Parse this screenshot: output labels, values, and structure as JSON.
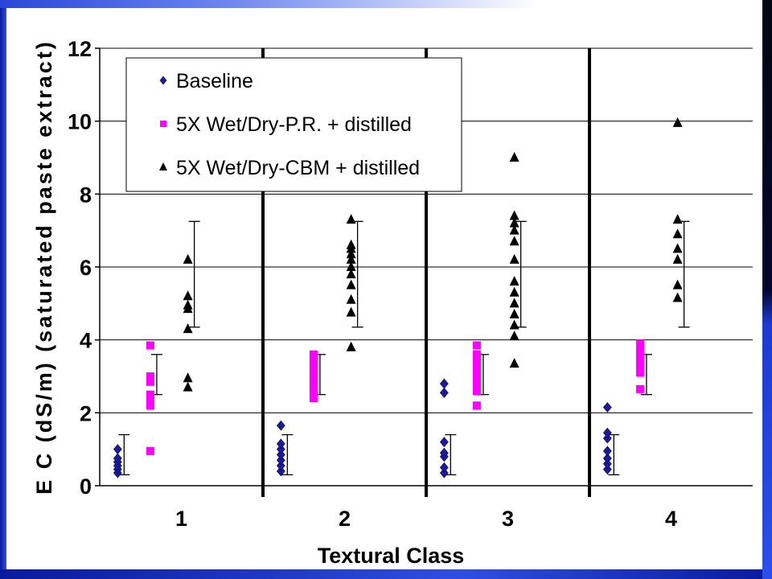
{
  "chart_data": {
    "type": "scatter",
    "xlabel": "Textural Class",
    "ylabel": "E C (dS/m) (saturated paste extract)",
    "ylim": [
      0,
      12
    ],
    "yticks": [
      "0",
      "2",
      "4",
      "6",
      "8",
      "10",
      "12"
    ],
    "categories": [
      "1",
      "2",
      "3",
      "4"
    ],
    "grid": "horizontal",
    "legend_position": "top-left",
    "series": [
      {
        "name": "Baseline",
        "marker": "diamond",
        "color": "#1a1a9c",
        "points": [
          {
            "x": 1,
            "y": 0.35
          },
          {
            "x": 1,
            "y": 0.45
          },
          {
            "x": 1,
            "y": 0.55
          },
          {
            "x": 1,
            "y": 0.65
          },
          {
            "x": 1,
            "y": 0.75
          },
          {
            "x": 1,
            "y": 1.0
          },
          {
            "x": 2,
            "y": 0.4
          },
          {
            "x": 2,
            "y": 0.55
          },
          {
            "x": 2,
            "y": 0.7
          },
          {
            "x": 2,
            "y": 0.85
          },
          {
            "x": 2,
            "y": 1.0
          },
          {
            "x": 2,
            "y": 1.15
          },
          {
            "x": 2,
            "y": 1.65
          },
          {
            "x": 3,
            "y": 0.35
          },
          {
            "x": 3,
            "y": 0.5
          },
          {
            "x": 3,
            "y": 0.8
          },
          {
            "x": 3,
            "y": 0.9
          },
          {
            "x": 3,
            "y": 1.2
          },
          {
            "x": 3,
            "y": 2.55
          },
          {
            "x": 3,
            "y": 2.8
          },
          {
            "x": 4,
            "y": 0.45
          },
          {
            "x": 4,
            "y": 0.6
          },
          {
            "x": 4,
            "y": 0.75
          },
          {
            "x": 4,
            "y": 0.95
          },
          {
            "x": 4,
            "y": 1.3
          },
          {
            "x": 4,
            "y": 1.45
          },
          {
            "x": 4,
            "y": 2.15
          }
        ]
      },
      {
        "name": "5X Wet/Dry-P.R. + distilled",
        "marker": "square",
        "color": "#ff00ff",
        "points": [
          {
            "x": 1,
            "y": 0.95
          },
          {
            "x": 1,
            "y": 2.2
          },
          {
            "x": 1,
            "y": 2.4
          },
          {
            "x": 1,
            "y": 2.5
          },
          {
            "x": 1,
            "y": 2.85
          },
          {
            "x": 1,
            "y": 3.0
          },
          {
            "x": 1,
            "y": 3.85
          },
          {
            "x": 2,
            "y": 2.4
          },
          {
            "x": 2,
            "y": 2.6
          },
          {
            "x": 2,
            "y": 2.8
          },
          {
            "x": 2,
            "y": 3.0
          },
          {
            "x": 2,
            "y": 3.2
          },
          {
            "x": 2,
            "y": 3.4
          },
          {
            "x": 2,
            "y": 3.6
          },
          {
            "x": 3,
            "y": 2.2
          },
          {
            "x": 3,
            "y": 2.6
          },
          {
            "x": 3,
            "y": 2.8
          },
          {
            "x": 3,
            "y": 3.0
          },
          {
            "x": 3,
            "y": 3.2
          },
          {
            "x": 3,
            "y": 3.4
          },
          {
            "x": 3,
            "y": 3.6
          },
          {
            "x": 3,
            "y": 3.85
          },
          {
            "x": 4,
            "y": 2.65
          },
          {
            "x": 4,
            "y": 3.1
          },
          {
            "x": 4,
            "y": 3.3
          },
          {
            "x": 4,
            "y": 3.5
          },
          {
            "x": 4,
            "y": 3.7
          },
          {
            "x": 4,
            "y": 3.9
          }
        ]
      },
      {
        "name": "5X Wet/Dry-CBM + distilled",
        "marker": "triangle",
        "color": "#000000",
        "points": [
          {
            "x": 1,
            "y": 2.7
          },
          {
            "x": 1,
            "y": 2.95
          },
          {
            "x": 1,
            "y": 4.3
          },
          {
            "x": 1,
            "y": 4.85
          },
          {
            "x": 1,
            "y": 4.95
          },
          {
            "x": 1,
            "y": 5.2
          },
          {
            "x": 1,
            "y": 6.2
          },
          {
            "x": 2,
            "y": 3.8
          },
          {
            "x": 2,
            "y": 4.75
          },
          {
            "x": 2,
            "y": 5.1
          },
          {
            "x": 2,
            "y": 5.5
          },
          {
            "x": 2,
            "y": 5.8
          },
          {
            "x": 2,
            "y": 6.0
          },
          {
            "x": 2,
            "y": 6.2
          },
          {
            "x": 2,
            "y": 6.35
          },
          {
            "x": 2,
            "y": 6.5
          },
          {
            "x": 2,
            "y": 6.6
          },
          {
            "x": 2,
            "y": 7.3
          },
          {
            "x": 3,
            "y": 3.35
          },
          {
            "x": 3,
            "y": 4.1
          },
          {
            "x": 3,
            "y": 4.4
          },
          {
            "x": 3,
            "y": 4.7
          },
          {
            "x": 3,
            "y": 5.0
          },
          {
            "x": 3,
            "y": 5.3
          },
          {
            "x": 3,
            "y": 5.6
          },
          {
            "x": 3,
            "y": 6.2
          },
          {
            "x": 3,
            "y": 6.7
          },
          {
            "x": 3,
            "y": 7.0
          },
          {
            "x": 3,
            "y": 7.2
          },
          {
            "x": 3,
            "y": 7.4
          },
          {
            "x": 3,
            "y": 9.0
          },
          {
            "x": 4,
            "y": 5.15
          },
          {
            "x": 4,
            "y": 5.5
          },
          {
            "x": 4,
            "y": 6.2
          },
          {
            "x": 4,
            "y": 6.5
          },
          {
            "x": 4,
            "y": 6.9
          },
          {
            "x": 4,
            "y": 7.3
          },
          {
            "x": 4,
            "y": 9.95
          }
        ]
      }
    ],
    "error_bars": [
      {
        "series": "Baseline",
        "x": 1,
        "low": 0.3,
        "high": 1.4
      },
      {
        "series": "5X Wet/Dry-P.R. + distilled",
        "x": 1,
        "low": 2.5,
        "high": 3.6
      },
      {
        "series": "5X Wet/Dry-CBM + distilled",
        "x": 1,
        "low": 4.35,
        "high": 7.25
      },
      {
        "series": "Baseline",
        "x": 2,
        "low": 0.3,
        "high": 1.4
      },
      {
        "series": "5X Wet/Dry-P.R. + distilled",
        "x": 2,
        "low": 2.5,
        "high": 3.6
      },
      {
        "series": "5X Wet/Dry-CBM + distilled",
        "x": 2,
        "low": 4.35,
        "high": 7.25
      },
      {
        "series": "Baseline",
        "x": 3,
        "low": 0.3,
        "high": 1.4
      },
      {
        "series": "5X Wet/Dry-P.R. + distilled",
        "x": 3,
        "low": 2.5,
        "high": 3.6
      },
      {
        "series": "5X Wet/Dry-CBM + distilled",
        "x": 3,
        "low": 4.35,
        "high": 7.25
      },
      {
        "series": "Baseline",
        "x": 4,
        "low": 0.3,
        "high": 1.4
      },
      {
        "series": "5X Wet/Dry-P.R. + distilled",
        "x": 4,
        "low": 2.5,
        "high": 3.6
      },
      {
        "series": "5X Wet/Dry-CBM + distilled",
        "x": 4,
        "low": 4.35,
        "high": 7.25
      }
    ]
  }
}
